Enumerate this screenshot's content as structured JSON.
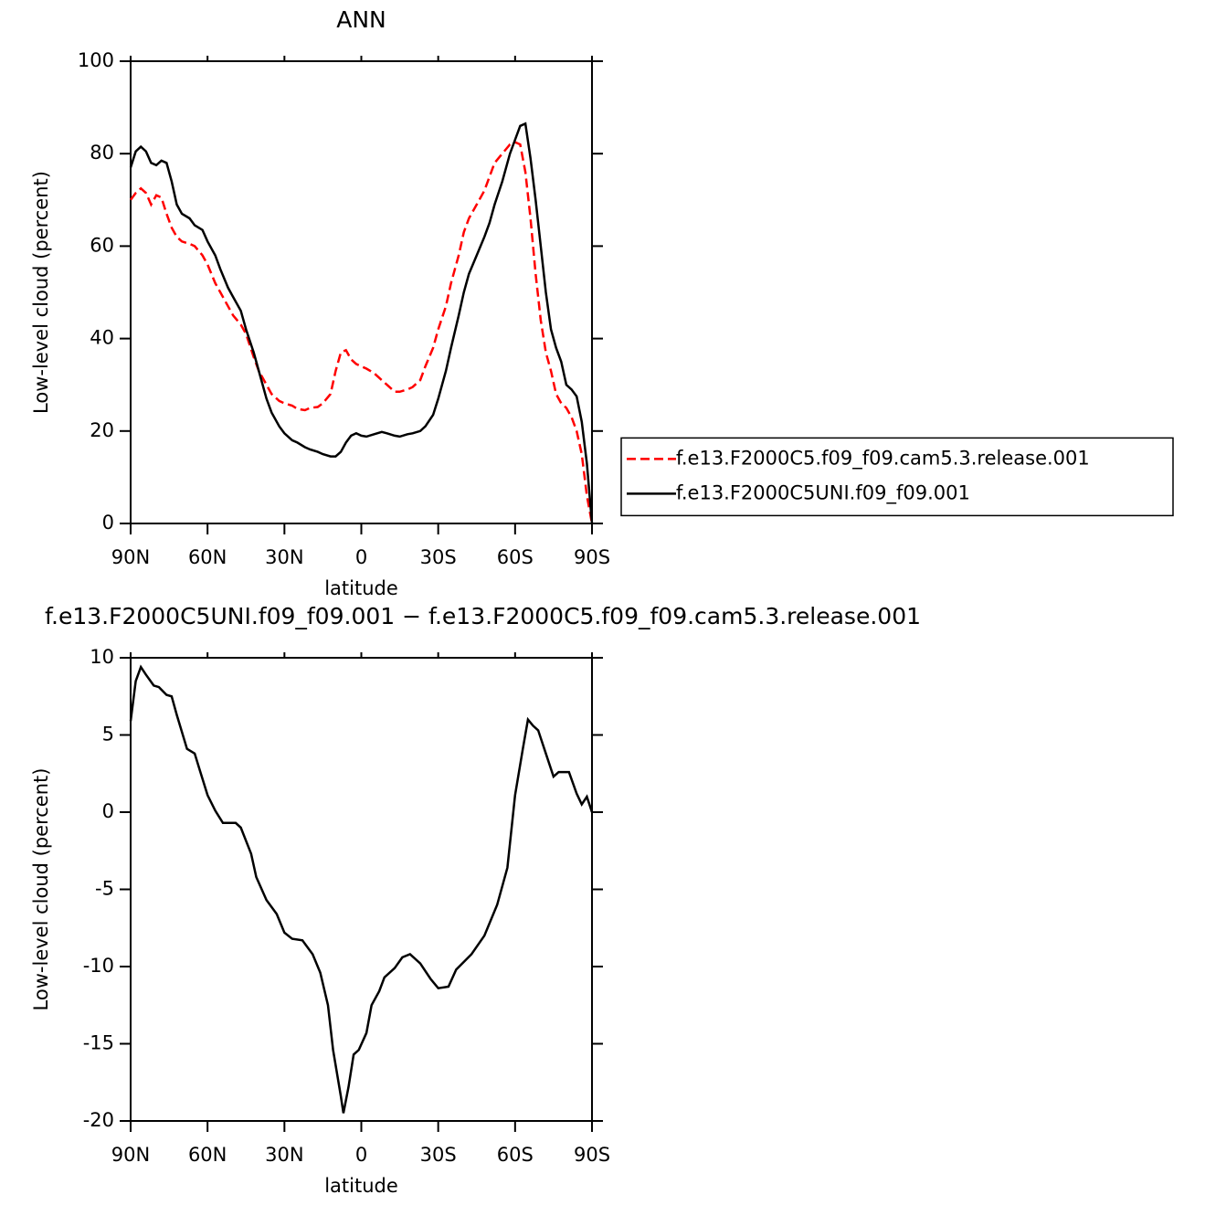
{
  "chart_data": [
    {
      "type": "line",
      "title": "ANN",
      "xlabel": "latitude",
      "ylabel": "Low-level cloud (percent)",
      "x": [
        90,
        88,
        86,
        84,
        82,
        80,
        78,
        76,
        74,
        72,
        70,
        67,
        65,
        62,
        60,
        57,
        55,
        52,
        50,
        47,
        45,
        42,
        40,
        37,
        35,
        32,
        30,
        27,
        25,
        22,
        20,
        17,
        15,
        12,
        10,
        8,
        6,
        4,
        2,
        0,
        -2,
        -5,
        -8,
        -10,
        -13,
        -15,
        -18,
        -20,
        -23,
        -25,
        -28,
        -30,
        -33,
        -35,
        -38,
        -40,
        -42,
        -45,
        -48,
        -50,
        -52,
        -55,
        -58,
        -60,
        -62,
        -64,
        -66,
        -68,
        -70,
        -72,
        -74,
        -76,
        -78,
        -80,
        -82,
        -84,
        -86,
        -88,
        -90
      ],
      "series": [
        {
          "name": "f.e13.F2000C5.f09_f09.cam5.3.release.001",
          "color": "#ff0000",
          "dashed": true,
          "values": [
            70,
            71.5,
            72.5,
            71.5,
            69,
            71,
            70.5,
            67,
            64,
            62,
            61,
            60.5,
            60,
            58,
            56,
            52,
            50,
            47,
            45,
            43,
            41,
            36,
            33,
            30,
            28,
            26.5,
            26,
            25.5,
            24.8,
            24.5,
            25,
            25.2,
            26,
            28,
            33,
            37,
            37.5,
            35.5,
            34.5,
            34,
            33.5,
            32.5,
            31,
            30,
            28.5,
            28.5,
            29,
            29.5,
            31,
            34,
            38,
            42,
            47,
            52,
            58,
            63,
            66,
            69,
            72,
            75,
            78,
            80,
            82,
            82.5,
            82,
            76,
            66,
            54,
            44,
            37,
            33,
            28,
            26,
            25,
            23,
            20,
            15,
            6,
            0
          ]
        },
        {
          "name": "f.e13.F2000C5UNI.f09_f09.001",
          "color": "#000000",
          "dashed": false,
          "values": [
            77,
            80.5,
            81.5,
            80.5,
            78,
            77.5,
            78.5,
            78,
            74,
            69,
            67,
            66,
            64.5,
            63.5,
            61,
            58,
            55,
            51,
            49,
            46,
            42,
            37,
            33,
            27,
            24,
            21,
            19.5,
            18,
            17.5,
            16.5,
            16,
            15.5,
            15,
            14.5,
            14.5,
            15.5,
            17.5,
            19,
            19.5,
            19,
            18.8,
            19.3,
            19.8,
            19.5,
            19,
            18.8,
            19.3,
            19.5,
            20,
            21,
            23.5,
            27,
            33,
            38,
            45,
            50,
            54,
            58,
            62,
            65,
            69,
            74,
            80,
            83,
            86,
            86.5,
            79,
            70,
            60,
            50,
            42,
            38,
            35,
            30,
            29,
            27.5,
            22,
            13,
            0
          ]
        }
      ],
      "xlim": [
        90,
        -90
      ],
      "xticks": [
        {
          "value": 90,
          "label": "90N"
        },
        {
          "value": 60,
          "label": "60N"
        },
        {
          "value": 30,
          "label": "30N"
        },
        0,
        {
          "value": -30,
          "label": "30S"
        },
        {
          "value": -60,
          "label": "60S"
        },
        {
          "value": -90,
          "label": "90S"
        }
      ],
      "ylim": [
        0,
        100
      ],
      "yticks": [
        0,
        20,
        40,
        60,
        80,
        100
      ],
      "legend": "right"
    },
    {
      "type": "line",
      "title": "f.e13.F2000C5UNI.f09_f09.001  −  f.e13.F2000C5.f09_f09.cam5.3.release.001",
      "xlabel": "latitude",
      "ylabel": "Low-level cloud (percent)",
      "x": [
        90,
        88,
        86,
        84,
        81,
        79,
        76,
        74,
        72,
        68,
        65,
        63,
        60,
        57,
        54,
        49,
        47,
        43,
        41,
        37,
        33,
        30,
        27,
        23,
        19,
        16,
        13,
        11,
        8,
        7,
        5,
        3,
        1,
        -2,
        -4,
        -7,
        -9,
        -13,
        -16,
        -19,
        -23,
        -27,
        -30,
        -34,
        -37,
        -43,
        -48,
        -53,
        -57,
        -60,
        -63,
        -65,
        -67,
        -69,
        -72,
        -75,
        -77,
        -81,
        -84,
        -86,
        -88,
        -90
      ],
      "series": [
        {
          "color": "#000000",
          "dashed": false,
          "values": [
            5.9,
            8.5,
            9.4,
            8.9,
            8.2,
            8.1,
            7.6,
            7.5,
            6.3,
            4.1,
            3.8,
            2.7,
            1.1,
            0.1,
            -0.7,
            -0.7,
            -1,
            -2.7,
            -4.2,
            -5.7,
            -6.6,
            -7.8,
            -8.2,
            -8.3,
            -9.2,
            -10.4,
            -12.5,
            -15.4,
            -18.4,
            -19.5,
            -17.8,
            -15.7,
            -15.4,
            -14.3,
            -12.5,
            -11.6,
            -10.7,
            -10.1,
            -9.4,
            -9.2,
            -9.8,
            -10.8,
            -11.4,
            -11.3,
            -10.2,
            -9.2,
            -8,
            -6,
            -3.6,
            1.1,
            4.1,
            6,
            5.6,
            5.3,
            3.8,
            2.3,
            2.6,
            2.6,
            1.2,
            0.5,
            1.0,
            0
          ]
        }
      ],
      "xlim": [
        90,
        -90
      ],
      "xticks": [
        {
          "value": 90,
          "label": "90N"
        },
        {
          "value": 60,
          "label": "60N"
        },
        {
          "value": 30,
          "label": "30N"
        },
        0,
        {
          "value": -30,
          "label": "30S"
        },
        {
          "value": -60,
          "label": "60S"
        },
        {
          "value": -90,
          "label": "90S"
        }
      ],
      "ylim": [
        -20,
        10
      ],
      "yticks": [
        -20,
        -15,
        -10,
        -5,
        0,
        5,
        10
      ]
    }
  ]
}
